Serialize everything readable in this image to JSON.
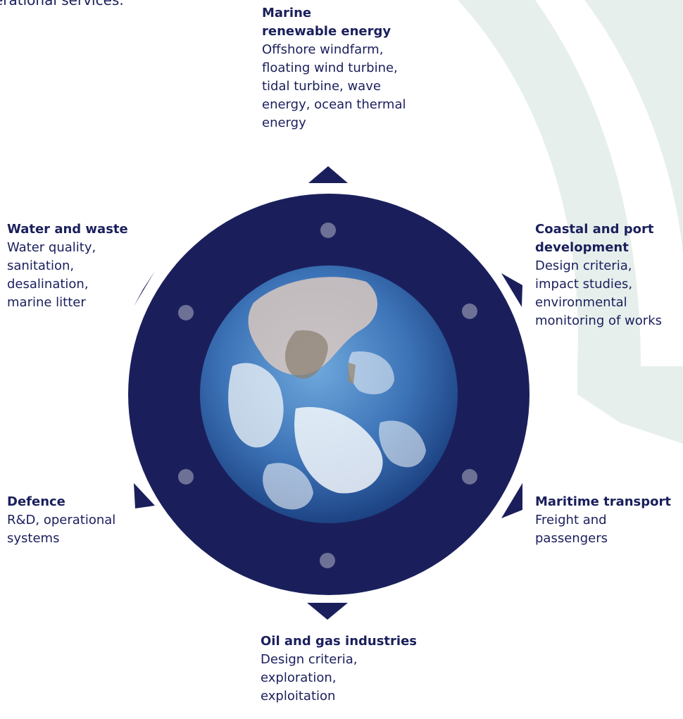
{
  "intro_text": "erational services.",
  "colors": {
    "navy": "#1a1f5c",
    "dot": "#6e7196",
    "swirl": "#e6efec",
    "ocean_deep": "#1d3f86",
    "ocean_light": "#5f9ad2"
  },
  "sectors": [
    {
      "id": "marine-renewable-energy",
      "title": "Marine\nrenewable energy",
      "desc": "Offshore windfarm,\nfloating wind turbine,\ntidal turbine, wave\nenergy, ocean thermal\nenergy"
    },
    {
      "id": "coastal-port-development",
      "title": "Coastal and port\ndevelopment",
      "desc": "Design criteria,\nimpact studies,\nenvironmental\nmonitoring of works"
    },
    {
      "id": "maritime-transport",
      "title": "Maritime transport",
      "desc": "Freight and\npassengers"
    },
    {
      "id": "oil-gas-industries",
      "title": "Oil and gas industries",
      "desc": "Design criteria,\nexploration,\nexploitation"
    },
    {
      "id": "defence",
      "title": "Defence",
      "desc": "R&D, operational\nsystems"
    },
    {
      "id": "water-waste",
      "title": "Water and waste",
      "desc": "Water quality,\nsanitation,\ndesalination,\nmarine litter"
    }
  ],
  "globe_icon": "earth-globe"
}
